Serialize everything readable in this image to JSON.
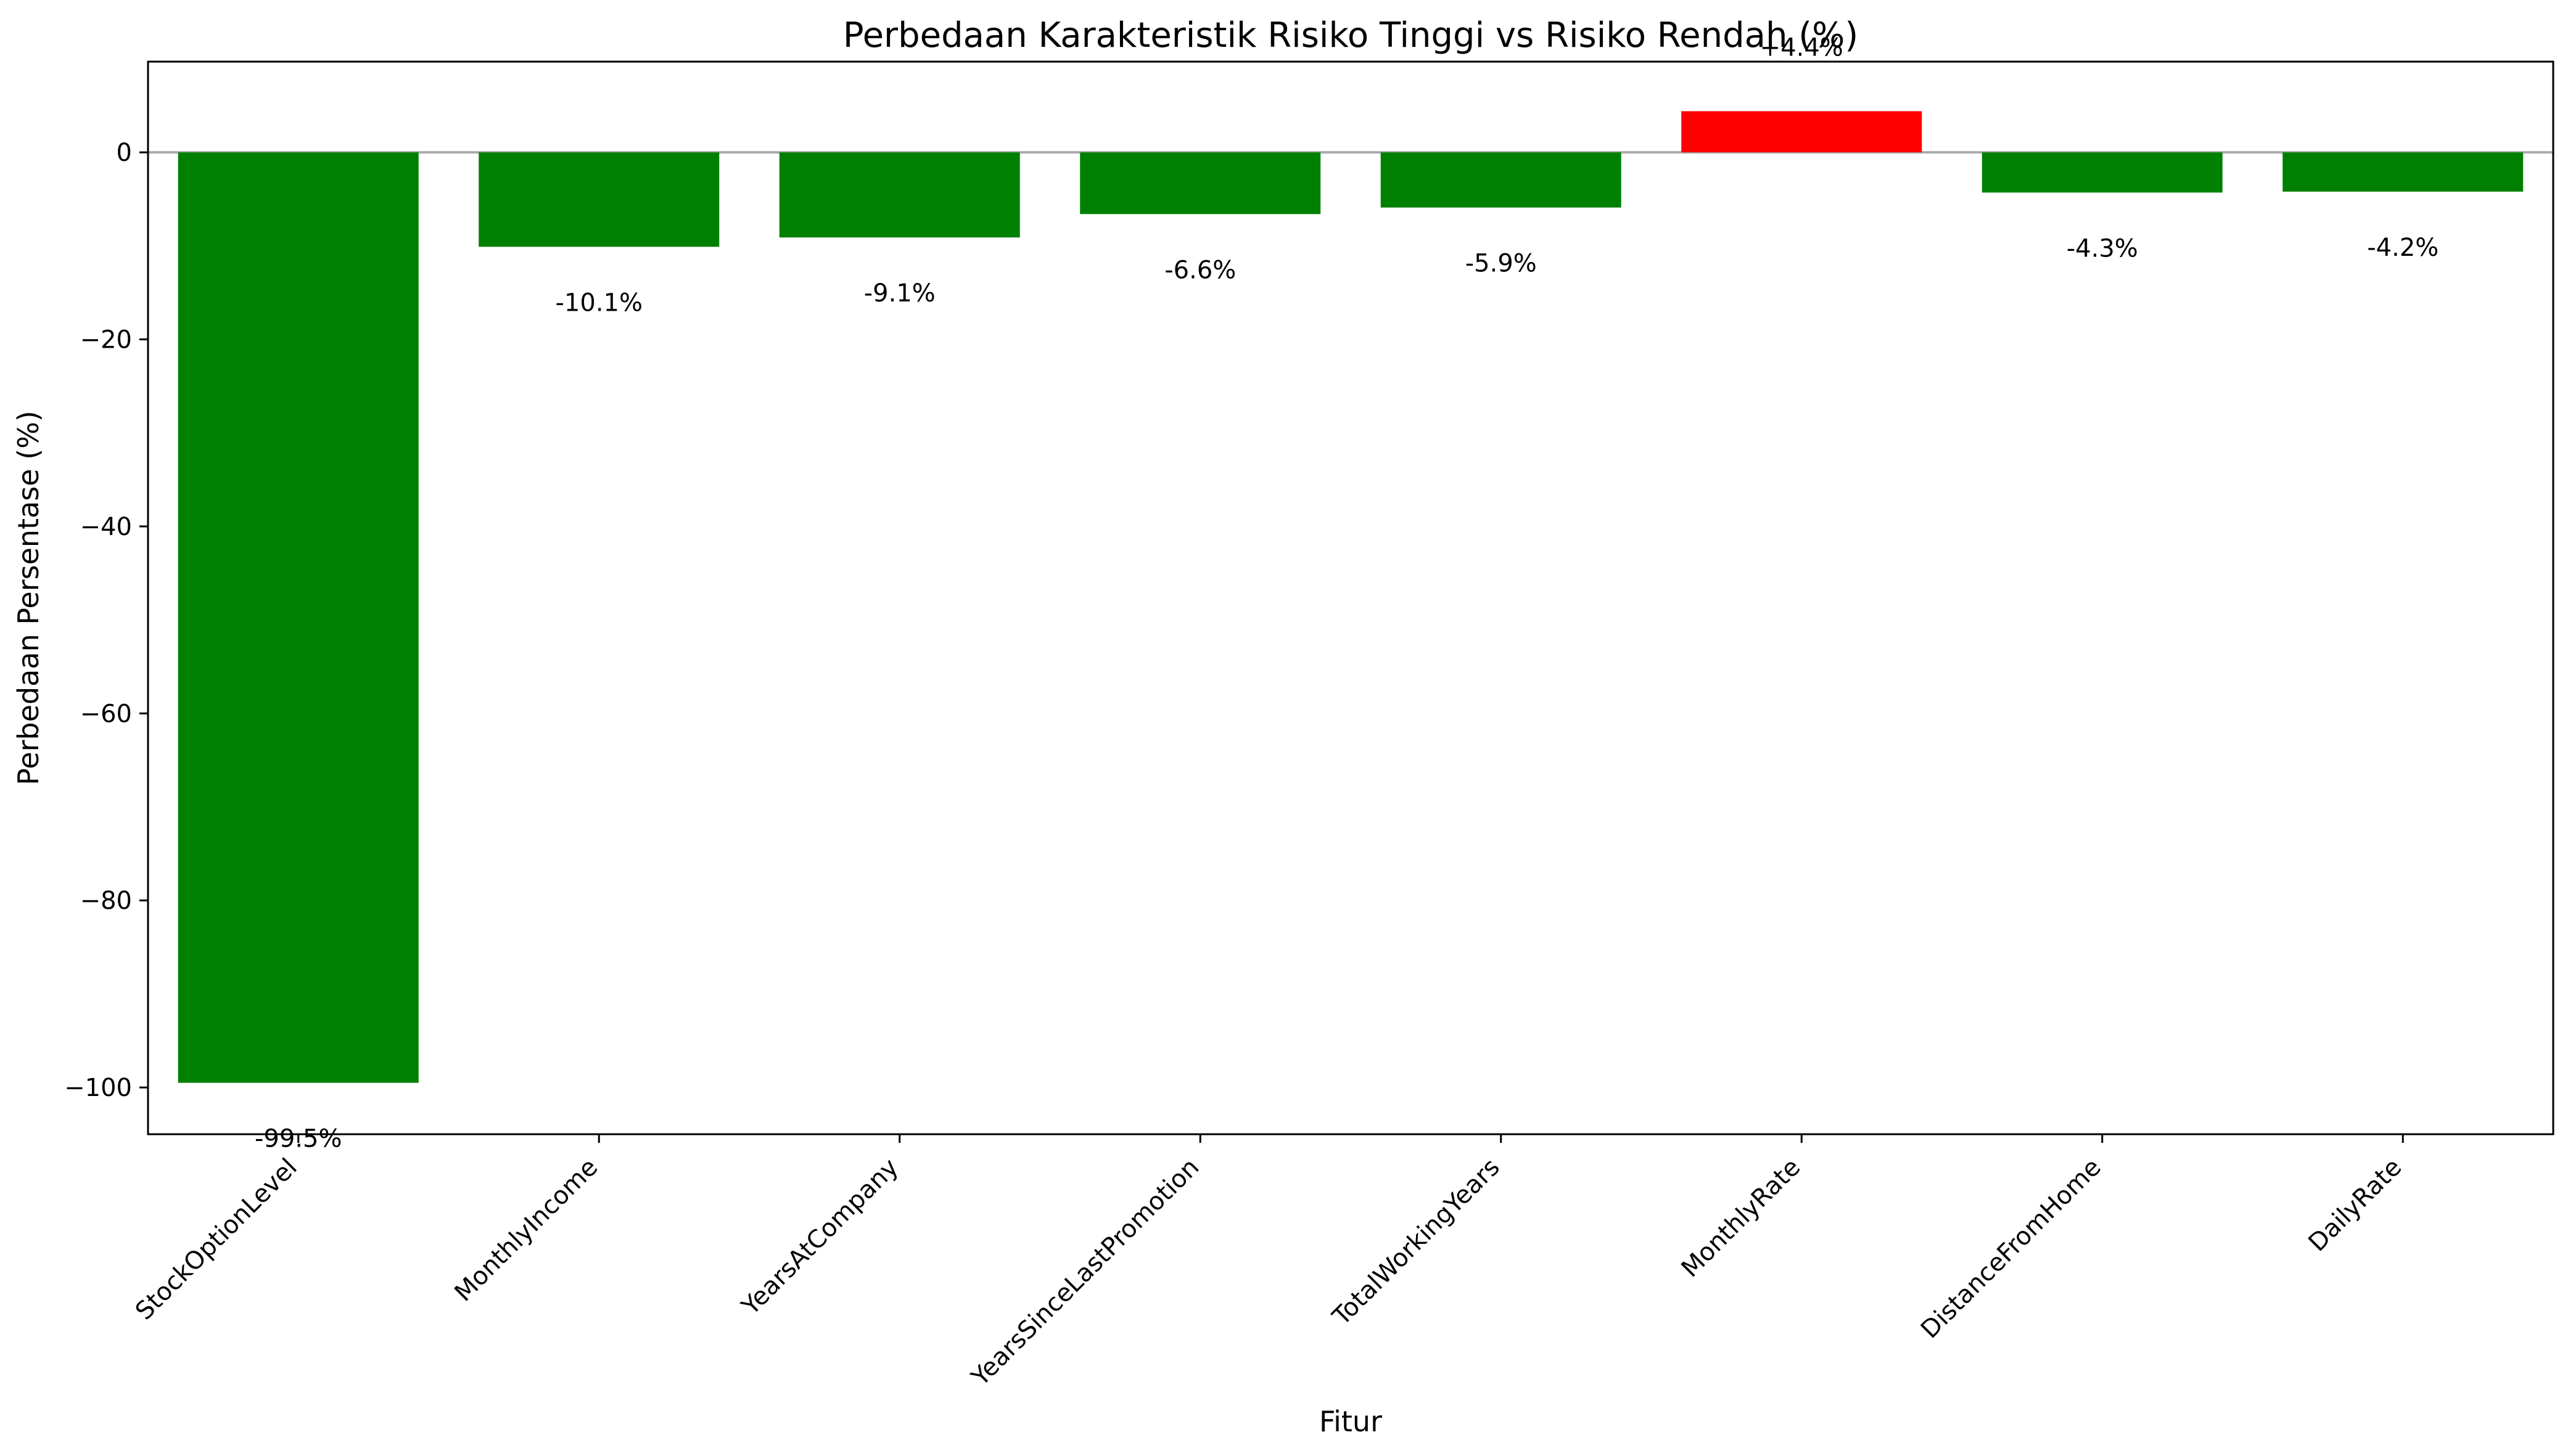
{
  "chart_data": {
    "type": "bar",
    "title": "Perbedaan Karakteristik Risiko Tinggi vs Risiko Rendah (%)",
    "xlabel": "Fitur",
    "ylabel": "Perbedaan Persentase (%)",
    "categories": [
      "StockOptionLevel",
      "MonthlyIncome",
      "YearsAtCompany",
      "YearsSinceLastPromotion",
      "TotalWorkingYears",
      "MonthlyRate",
      "DistanceFromHome",
      "DailyRate"
    ],
    "values": [
      -99.5,
      -10.1,
      -9.1,
      -6.6,
      -5.9,
      4.4,
      -4.3,
      -4.2
    ],
    "data_labels": [
      "-99.5%",
      "-10.1%",
      "-9.1%",
      "-6.6%",
      "-5.9%",
      "+4.4%",
      "-4.3%",
      "-4.2%"
    ],
    "ylim": [
      -105,
      9.7
    ],
    "yticks": [
      0,
      -20,
      -40,
      -60,
      -80,
      -100
    ],
    "ytick_labels": [
      "0",
      "−20",
      "−40",
      "−60",
      "−80",
      "−100"
    ],
    "colors": {
      "positive": "#ff0000",
      "negative": "#008000",
      "zero_line": "#aaaaaa"
    },
    "grid": false,
    "legend": "none"
  }
}
